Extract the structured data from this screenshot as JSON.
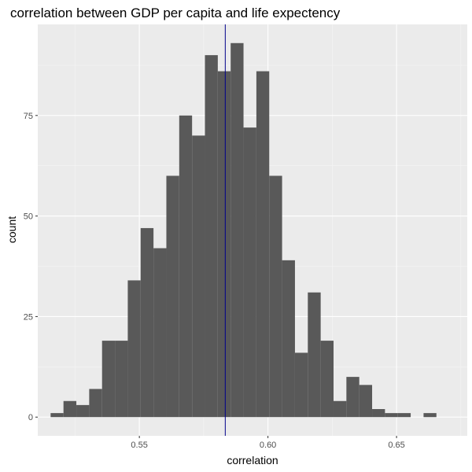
{
  "chart_data": {
    "type": "bar",
    "title": "correlation between GDP per capita and life expectency",
    "xlabel": "correlation",
    "ylabel": "count",
    "xlim": [
      0.5105,
      0.6775
    ],
    "ylim": [
      -4.65,
      97.65
    ],
    "bin_width": 0.005,
    "bins": [
      {
        "x0": 0.5155,
        "x1": 0.5205,
        "count": 1
      },
      {
        "x0": 0.5205,
        "x1": 0.5255,
        "count": 4
      },
      {
        "x0": 0.5255,
        "x1": 0.5305,
        "count": 3
      },
      {
        "x0": 0.5305,
        "x1": 0.5355,
        "count": 7
      },
      {
        "x0": 0.5355,
        "x1": 0.5405,
        "count": 19
      },
      {
        "x0": 0.5405,
        "x1": 0.5455,
        "count": 19
      },
      {
        "x0": 0.5455,
        "x1": 0.5505,
        "count": 34
      },
      {
        "x0": 0.5505,
        "x1": 0.5555,
        "count": 47
      },
      {
        "x0": 0.5555,
        "x1": 0.5605,
        "count": 42
      },
      {
        "x0": 0.5605,
        "x1": 0.5655,
        "count": 60
      },
      {
        "x0": 0.5655,
        "x1": 0.5705,
        "count": 75
      },
      {
        "x0": 0.5705,
        "x1": 0.5755,
        "count": 70
      },
      {
        "x0": 0.5755,
        "x1": 0.5805,
        "count": 90
      },
      {
        "x0": 0.5805,
        "x1": 0.5855,
        "count": 86
      },
      {
        "x0": 0.5855,
        "x1": 0.5905,
        "count": 93
      },
      {
        "x0": 0.5905,
        "x1": 0.5955,
        "count": 72
      },
      {
        "x0": 0.5955,
        "x1": 0.6005,
        "count": 86
      },
      {
        "x0": 0.6005,
        "x1": 0.6055,
        "count": 60
      },
      {
        "x0": 0.6055,
        "x1": 0.6105,
        "count": 39
      },
      {
        "x0": 0.6105,
        "x1": 0.6155,
        "count": 16
      },
      {
        "x0": 0.6155,
        "x1": 0.6205,
        "count": 31
      },
      {
        "x0": 0.6205,
        "x1": 0.6255,
        "count": 19
      },
      {
        "x0": 0.6255,
        "x1": 0.6305,
        "count": 4
      },
      {
        "x0": 0.6305,
        "x1": 0.6355,
        "count": 10
      },
      {
        "x0": 0.6355,
        "x1": 0.6405,
        "count": 8
      },
      {
        "x0": 0.6405,
        "x1": 0.6455,
        "count": 2
      },
      {
        "x0": 0.6455,
        "x1": 0.6505,
        "count": 1
      },
      {
        "x0": 0.6505,
        "x1": 0.6555,
        "count": 1
      },
      {
        "x0": 0.6555,
        "x1": 0.6605,
        "count": 0
      },
      {
        "x0": 0.6605,
        "x1": 0.6655,
        "count": 1
      }
    ],
    "x_ticks": [
      {
        "value": 0.55,
        "label": "0.55"
      },
      {
        "value": 0.6,
        "label": "0.60"
      },
      {
        "value": 0.65,
        "label": "0.65"
      }
    ],
    "y_ticks": [
      {
        "value": 0,
        "label": "0"
      },
      {
        "value": 25,
        "label": "25"
      },
      {
        "value": 50,
        "label": "50"
      },
      {
        "value": 75,
        "label": "75"
      }
    ],
    "reference_line": {
      "orientation": "vertical",
      "x": 0.5834,
      "color": "#00008b"
    },
    "grid": true,
    "colors": {
      "bar_fill": "#595959",
      "panel_background": "#ebebeb",
      "grid_major": "#ffffff",
      "grid_minor": "#f5f5f5",
      "tick_label": "#4d4d4d"
    }
  }
}
